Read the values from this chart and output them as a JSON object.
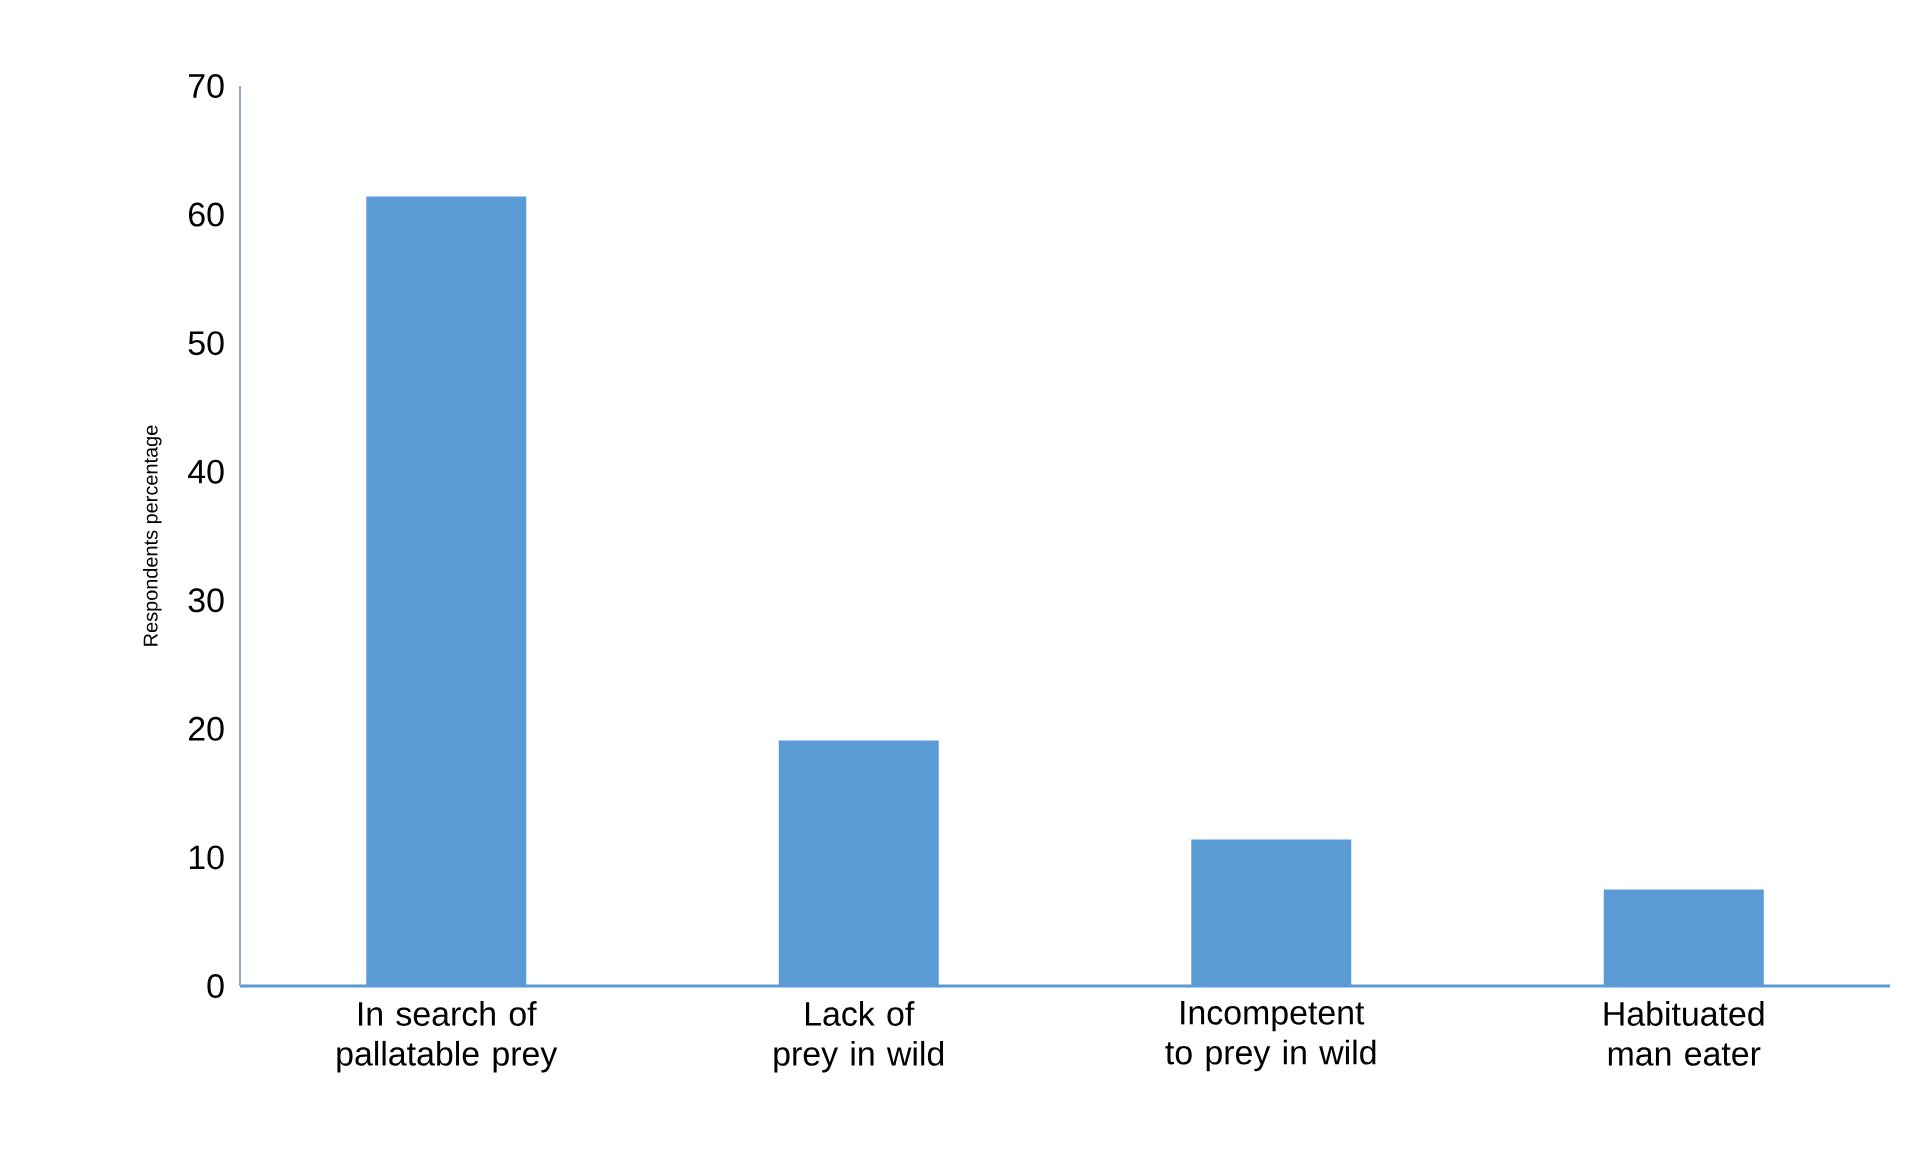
{
  "chart_data": {
    "type": "bar",
    "ylabel": "Respondents percentage",
    "categories": [
      "In search of pallatable prey",
      "Lack of prey in wild",
      "Incompetent to prey in wild",
      "Habituated man eater"
    ],
    "values": [
      61.4,
      19.1,
      11.4,
      7.5
    ],
    "color": "#5b9bd5",
    "ylim": [
      0,
      70
    ],
    "yticks": [
      0,
      10,
      20,
      30,
      40,
      50,
      60,
      70
    ]
  }
}
